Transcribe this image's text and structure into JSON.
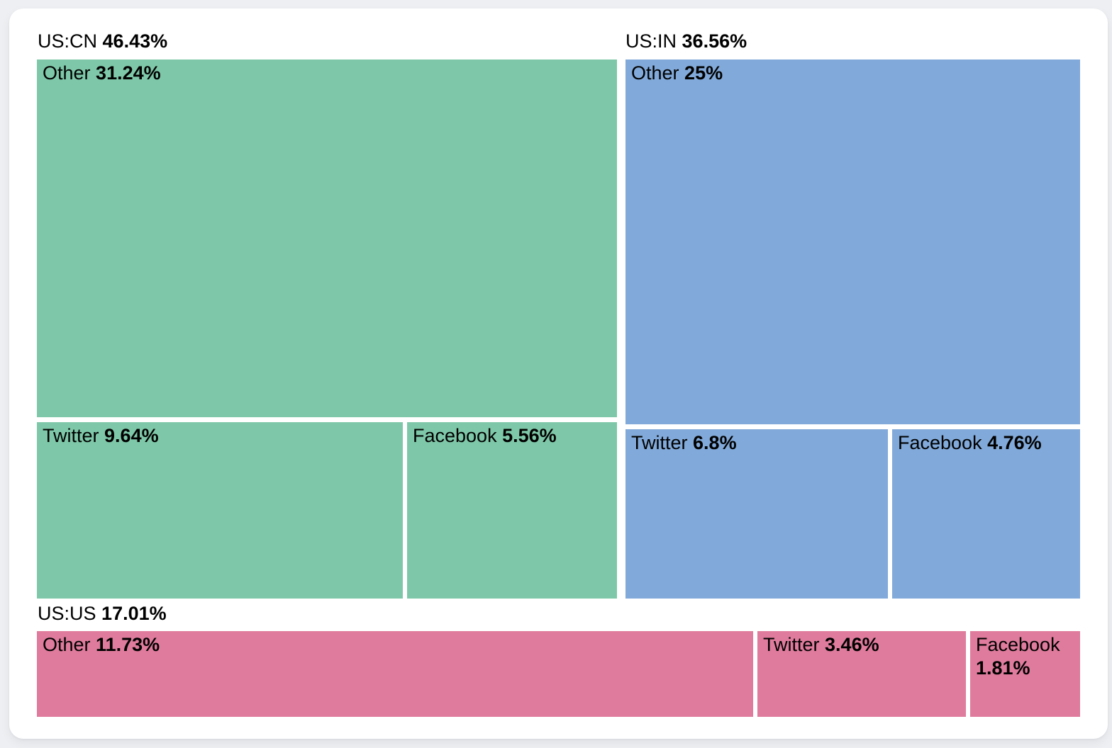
{
  "page": {
    "background": "#edeff2",
    "card_background": "#ffffff",
    "text_color": "#000000"
  },
  "chart_data": {
    "type": "treemap",
    "title": "",
    "unit": "percent",
    "legend_position": "none",
    "groups": [
      {
        "name": "US:CN",
        "share": "46.43%",
        "value": 46.43,
        "color": "#7ec8a9",
        "children": [
          {
            "name": "Other",
            "share": "31.24%",
            "value": 31.24
          },
          {
            "name": "Twitter",
            "share": "9.64%",
            "value": 9.64
          },
          {
            "name": "Facebook",
            "share": "5.56%",
            "value": 5.56
          }
        ]
      },
      {
        "name": "US:IN",
        "share": "36.56%",
        "value": 36.56,
        "color": "#81a9d9",
        "children": [
          {
            "name": "Other",
            "share": "25%",
            "value": 25
          },
          {
            "name": "Twitter",
            "share": "6.8%",
            "value": 6.8
          },
          {
            "name": "Facebook",
            "share": "4.76%",
            "value": 4.76
          }
        ]
      },
      {
        "name": "US:US",
        "share": "17.01%",
        "value": 17.01,
        "color": "#df7b9c",
        "children": [
          {
            "name": "Other",
            "share": "11.73%",
            "value": 11.73
          },
          {
            "name": "Twitter",
            "share": "3.46%",
            "value": 3.46
          },
          {
            "name": "Facebook",
            "share": "1.81%",
            "value": 1.81
          }
        ]
      }
    ]
  }
}
